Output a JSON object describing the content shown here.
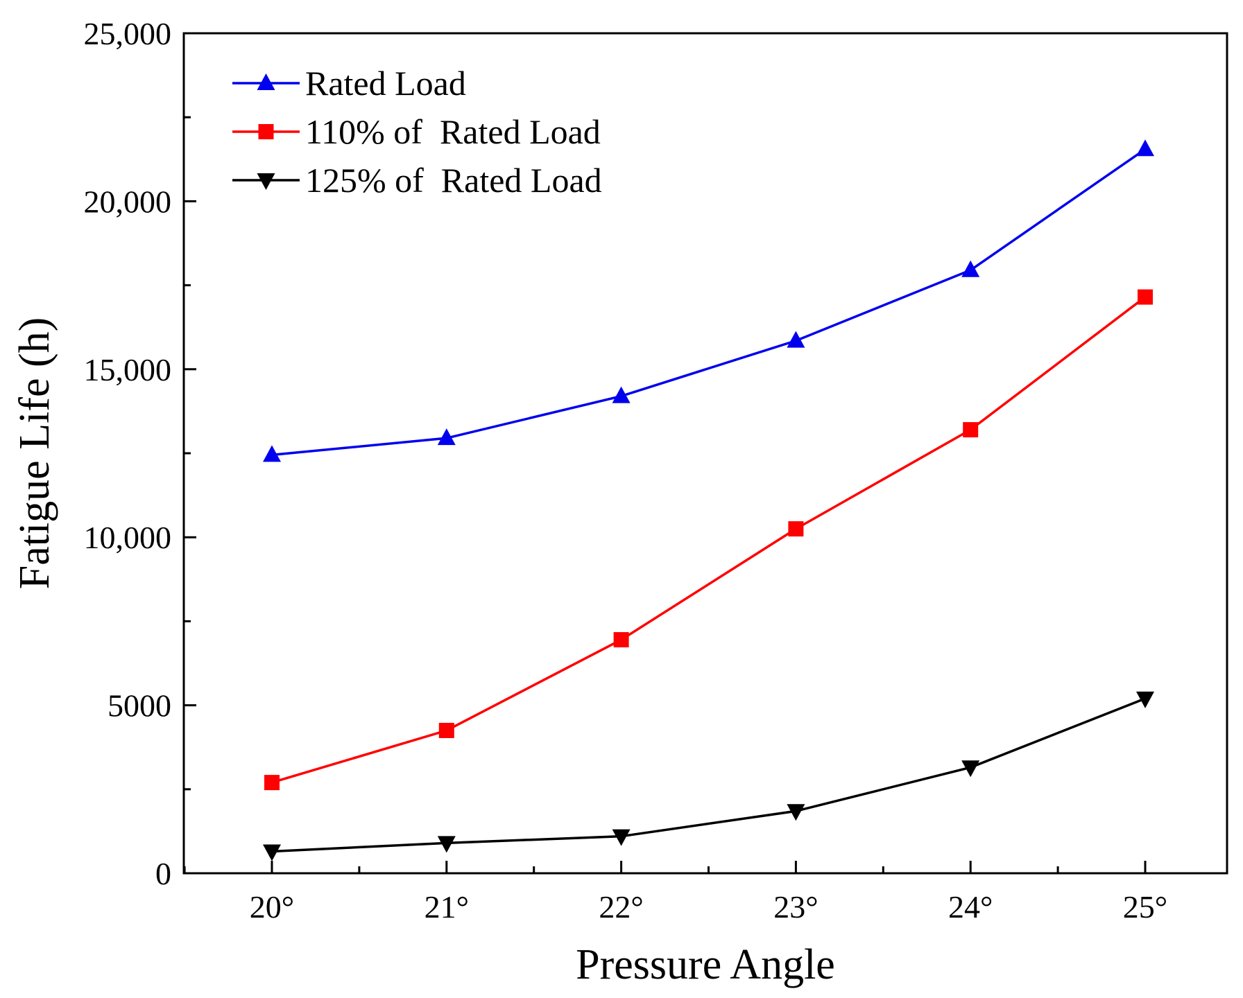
{
  "chart_data": {
    "type": "line",
    "title": "",
    "xlabel": "Pressure Angle",
    "ylabel": "Fatigue Life (h)",
    "categories": [
      "20°",
      "21°",
      "22°",
      "23°",
      "24°",
      "25°"
    ],
    "ylim": [
      0,
      25000
    ],
    "yticks": [
      {
        "value": 0,
        "label": "0"
      },
      {
        "value": 5000,
        "label": "5000"
      },
      {
        "value": 10000,
        "label": "10,000"
      },
      {
        "value": 15000,
        "label": "15,000"
      },
      {
        "value": 20000,
        "label": "20,000"
      },
      {
        "value": 25000,
        "label": "25,000"
      }
    ],
    "y_minor_step": 2500,
    "grid": false,
    "legend_position": "top-left",
    "series": [
      {
        "name": "Rated Load",
        "color": "#0000ee",
        "marker": "triangle-up",
        "values": [
          12450,
          12950,
          14200,
          15850,
          17950,
          21550
        ]
      },
      {
        "name": "110% of  Rated Load",
        "color": "#ff0000",
        "marker": "square",
        "values": [
          2700,
          4250,
          6950,
          10250,
          13200,
          17150
        ]
      },
      {
        "name": "125% of  Rated Load",
        "color": "#000000",
        "marker": "triangle-down",
        "values": [
          650,
          900,
          1100,
          1850,
          3150,
          5200
        ]
      }
    ]
  }
}
